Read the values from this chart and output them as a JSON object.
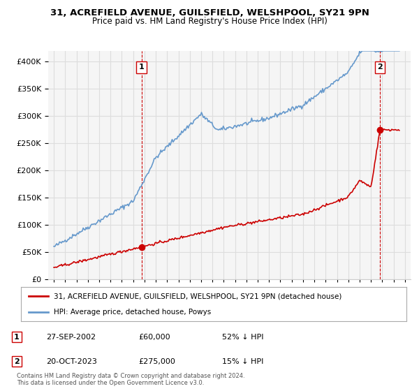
{
  "title": "31, ACREFIELD AVENUE, GUILSFIELD, WELSHPOOL, SY21 9PN",
  "subtitle": "Price paid vs. HM Land Registry's House Price Index (HPI)",
  "transaction1": {
    "date": "27-SEP-2002",
    "price": 60000,
    "pct": "52% ↓ HPI",
    "label": "1"
  },
  "transaction2": {
    "date": "20-OCT-2023",
    "price": 275000,
    "pct": "15% ↓ HPI",
    "label": "2"
  },
  "legend_house": "31, ACREFIELD AVENUE, GUILSFIELD, WELSHPOOL, SY21 9PN (detached house)",
  "legend_hpi": "HPI: Average price, detached house, Powys",
  "footer": "Contains HM Land Registry data © Crown copyright and database right 2024.\nThis data is licensed under the Open Government Licence v3.0.",
  "house_color": "#cc0000",
  "hpi_color": "#6699cc",
  "marker_color": "#cc0000",
  "vline_color": "#cc0000",
  "grid_color": "#dddddd",
  "bg_color": "#f5f5f5",
  "ylim": [
    0,
    420000
  ],
  "yticks": [
    0,
    50000,
    100000,
    150000,
    200000,
    250000,
    300000,
    350000,
    400000
  ],
  "start_year": 1995,
  "end_year": 2026,
  "t1_year": 2002.74,
  "t2_year": 2023.8
}
